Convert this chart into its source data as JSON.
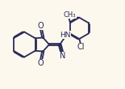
{
  "bg_color": "#fcf8ed",
  "bond_color": "#2a2a5a",
  "line_width": 1.3,
  "dbo": 0.07,
  "fs": 7.0,
  "fs_small": 6.0,
  "xlim": [
    0,
    10
  ],
  "ylim": [
    0,
    7
  ]
}
